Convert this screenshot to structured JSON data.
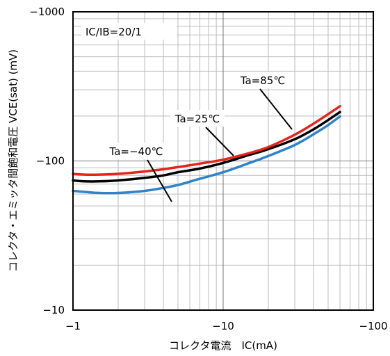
{
  "chart_data": {
    "type": "line",
    "x_scale": "log",
    "y_scale": "log",
    "xlabel": "コレクタ電流　IC(mA)",
    "ylabel": "コレクタ・エミッタ間飽和電圧 VCE(sat) (mV)",
    "xlim": [
      -1,
      -100
    ],
    "ylim": [
      -10,
      -1000
    ],
    "x_ticks": [
      "−1",
      "−10",
      "−100"
    ],
    "y_ticks": [
      "−10",
      "−100",
      "−1000"
    ],
    "grid": true,
    "condition_label": "IC/IB=20/1",
    "series": [
      {
        "name": "Ta=85℃",
        "color": "#e8231c",
        "x": [
          -1,
          -1.2,
          -1.5,
          -2,
          -3,
          -4,
          -5,
          -7,
          -10,
          -15,
          -20,
          -30,
          -40,
          -50,
          -60
        ],
        "y": [
          -82,
          -81,
          -81,
          -82,
          -85,
          -88,
          -91,
          -96,
          -102,
          -113,
          -124,
          -150,
          -178,
          -206,
          -233
        ]
      },
      {
        "name": "Ta=25℃",
        "color": "#000000",
        "x": [
          -1,
          -1.2,
          -1.5,
          -2,
          -3,
          -4,
          -5,
          -7,
          -10,
          -15,
          -20,
          -30,
          -40,
          -50,
          -60
        ],
        "y": [
          -74,
          -73,
          -73,
          -74,
          -77,
          -80,
          -84,
          -89,
          -97,
          -110,
          -120,
          -140,
          -163,
          -188,
          -213
        ]
      },
      {
        "name": "Ta=−40℃",
        "color": "#2f83c8",
        "x": [
          -1,
          -1.2,
          -1.5,
          -2,
          -3,
          -4,
          -5,
          -7,
          -10,
          -15,
          -20,
          -30,
          -40,
          -50,
          -60
        ],
        "y": [
          -63,
          -62,
          -61,
          -61,
          -63,
          -66,
          -69,
          -76,
          -84,
          -97,
          -108,
          -128,
          -151,
          -174,
          -199
        ]
      }
    ],
    "annotations": [
      {
        "text": "Ta=85℃",
        "points_to": "Ta=85℃"
      },
      {
        "text": "Ta=25℃",
        "points_to": "Ta=25℃"
      },
      {
        "text": "Ta=−40℃",
        "points_to": "Ta=−40℃"
      }
    ]
  }
}
